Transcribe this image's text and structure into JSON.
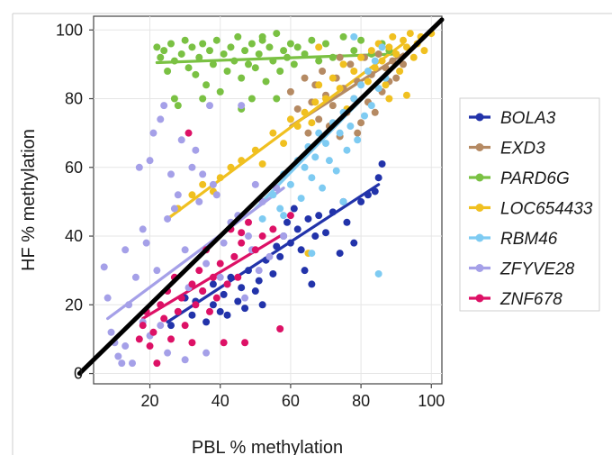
{
  "chart_data": {
    "type": "scatter",
    "title": "",
    "xlabel": "PBL % methylation",
    "ylabel": "HF % methylation",
    "xlim": [
      4,
      103
    ],
    "ylim": [
      -3,
      104
    ],
    "xticks": [
      20,
      40,
      60,
      80,
      100
    ],
    "yticks": [
      0,
      20,
      40,
      60,
      80,
      100
    ],
    "grid": true,
    "legend_position": "right",
    "identity_line": {
      "from": [
        0,
        0
      ],
      "to": [
        103,
        103
      ],
      "color": "#000000"
    },
    "series": [
      {
        "name": "BOLA3",
        "color": "#2233aa",
        "trend": [
          [
            25,
            15
          ],
          [
            85,
            55
          ]
        ],
        "points": [
          [
            26,
            14
          ],
          [
            28,
            18
          ],
          [
            30,
            22
          ],
          [
            32,
            17
          ],
          [
            33,
            21
          ],
          [
            35,
            24
          ],
          [
            36,
            15
          ],
          [
            38,
            20
          ],
          [
            38,
            26
          ],
          [
            40,
            18
          ],
          [
            41,
            23
          ],
          [
            42,
            17
          ],
          [
            43,
            28
          ],
          [
            45,
            21
          ],
          [
            46,
            25
          ],
          [
            47,
            19
          ],
          [
            48,
            30
          ],
          [
            50,
            24
          ],
          [
            51,
            27
          ],
          [
            52,
            20
          ],
          [
            53,
            33
          ],
          [
            55,
            29
          ],
          [
            56,
            37
          ],
          [
            57,
            34
          ],
          [
            58,
            40
          ],
          [
            59,
            44
          ],
          [
            60,
            38
          ],
          [
            61,
            48
          ],
          [
            62,
            42
          ],
          [
            63,
            36
          ],
          [
            64,
            30
          ],
          [
            65,
            45
          ],
          [
            66,
            26
          ],
          [
            67,
            40
          ],
          [
            68,
            46
          ],
          [
            70,
            41
          ],
          [
            72,
            47
          ],
          [
            74,
            35
          ],
          [
            75,
            50
          ],
          [
            76,
            44
          ],
          [
            78,
            38
          ],
          [
            80,
            50
          ],
          [
            82,
            52
          ],
          [
            84,
            53
          ],
          [
            85,
            57
          ],
          [
            86,
            61
          ]
        ]
      },
      {
        "name": "EXD3",
        "color": "#b58a63",
        "trend": [
          [
            60,
            72
          ],
          [
            92,
            93
          ]
        ],
        "points": [
          [
            60,
            82
          ],
          [
            62,
            77
          ],
          [
            64,
            86
          ],
          [
            65,
            70
          ],
          [
            66,
            79
          ],
          [
            67,
            84
          ],
          [
            68,
            74
          ],
          [
            69,
            88
          ],
          [
            70,
            81
          ],
          [
            71,
            72
          ],
          [
            72,
            78
          ],
          [
            73,
            86
          ],
          [
            74,
            69
          ],
          [
            75,
            83
          ],
          [
            76,
            76
          ],
          [
            77,
            90
          ],
          [
            78,
            80
          ],
          [
            79,
            85
          ],
          [
            80,
            73
          ],
          [
            81,
            92
          ],
          [
            82,
            79
          ],
          [
            83,
            87
          ],
          [
            84,
            76
          ],
          [
            85,
            93
          ],
          [
            86,
            82
          ],
          [
            87,
            89
          ],
          [
            88,
            85
          ],
          [
            89,
            91
          ],
          [
            90,
            86
          ],
          [
            92,
            90
          ],
          [
            74,
            92
          ],
          [
            79,
            70
          ]
        ]
      },
      {
        "name": "PARD6G",
        "color": "#7ac143",
        "trend": [
          [
            22,
            90.5
          ],
          [
            90,
            93
          ]
        ],
        "points": [
          [
            22,
            95
          ],
          [
            23,
            92
          ],
          [
            24,
            94
          ],
          [
            25,
            88
          ],
          [
            26,
            96
          ],
          [
            27,
            91
          ],
          [
            28,
            78
          ],
          [
            29,
            93
          ],
          [
            30,
            97
          ],
          [
            31,
            89
          ],
          [
            32,
            95
          ],
          [
            33,
            87
          ],
          [
            34,
            92
          ],
          [
            35,
            96
          ],
          [
            36,
            84
          ],
          [
            37,
            94
          ],
          [
            38,
            90
          ],
          [
            39,
            97
          ],
          [
            40,
            82
          ],
          [
            41,
            93
          ],
          [
            42,
            88
          ],
          [
            43,
            95
          ],
          [
            44,
            91
          ],
          [
            45,
            98
          ],
          [
            46,
            86
          ],
          [
            47,
            94
          ],
          [
            48,
            90
          ],
          [
            49,
            96
          ],
          [
            50,
            89
          ],
          [
            51,
            93
          ],
          [
            52,
            97
          ],
          [
            53,
            85
          ],
          [
            54,
            95
          ],
          [
            55,
            91
          ],
          [
            56,
            99
          ],
          [
            57,
            88
          ],
          [
            58,
            94
          ],
          [
            59,
            92
          ],
          [
            60,
            96
          ],
          [
            61,
            90
          ],
          [
            62,
            95
          ],
          [
            64,
            93
          ],
          [
            66,
            97
          ],
          [
            68,
            91
          ],
          [
            70,
            96
          ],
          [
            72,
            92
          ],
          [
            75,
            98
          ],
          [
            78,
            94
          ],
          [
            80,
            97
          ],
          [
            83,
            93
          ],
          [
            86,
            96
          ],
          [
            88,
            94
          ],
          [
            27,
            80
          ],
          [
            35,
            80
          ],
          [
            46,
            77
          ],
          [
            49,
            80
          ],
          [
            56,
            80
          ],
          [
            52,
            98
          ]
        ]
      },
      {
        "name": "LOC654433",
        "color": "#f0c020",
        "trend": [
          [
            25,
            45
          ],
          [
            92,
            96
          ]
        ],
        "points": [
          [
            28,
            48
          ],
          [
            32,
            52
          ],
          [
            35,
            55
          ],
          [
            38,
            53
          ],
          [
            40,
            57
          ],
          [
            43,
            60
          ],
          [
            46,
            62
          ],
          [
            50,
            65
          ],
          [
            52,
            61
          ],
          [
            55,
            70
          ],
          [
            58,
            67
          ],
          [
            60,
            74
          ],
          [
            62,
            72
          ],
          [
            64,
            76
          ],
          [
            66,
            73
          ],
          [
            67,
            79
          ],
          [
            68,
            84
          ],
          [
            70,
            80
          ],
          [
            72,
            86
          ],
          [
            74,
            83
          ],
          [
            75,
            90
          ],
          [
            76,
            77
          ],
          [
            78,
            88
          ],
          [
            80,
            92
          ],
          [
            82,
            85
          ],
          [
            83,
            94
          ],
          [
            84,
            89
          ],
          [
            85,
            96
          ],
          [
            86,
            91
          ],
          [
            87,
            84
          ],
          [
            88,
            95
          ],
          [
            89,
            98
          ],
          [
            90,
            93
          ],
          [
            91,
            88
          ],
          [
            92,
            97
          ],
          [
            93,
            95
          ],
          [
            94,
            99
          ],
          [
            95,
            92
          ],
          [
            96,
            96
          ],
          [
            97,
            98
          ],
          [
            98,
            94
          ],
          [
            100,
            99
          ],
          [
            93,
            81
          ],
          [
            88,
            80
          ],
          [
            65,
            35
          ],
          [
            68,
            95
          ]
        ]
      },
      {
        "name": "RBM46",
        "color": "#7ecbf2",
        "trend": [
          [
            50,
            48
          ],
          [
            88,
            88
          ]
        ],
        "points": [
          [
            52,
            45
          ],
          [
            55,
            52
          ],
          [
            57,
            48
          ],
          [
            58,
            58
          ],
          [
            60,
            55
          ],
          [
            62,
            62
          ],
          [
            63,
            51
          ],
          [
            64,
            60
          ],
          [
            65,
            66
          ],
          [
            66,
            57
          ],
          [
            67,
            63
          ],
          [
            68,
            70
          ],
          [
            69,
            54
          ],
          [
            70,
            67
          ],
          [
            71,
            62
          ],
          [
            72,
            73
          ],
          [
            73,
            59
          ],
          [
            74,
            70
          ],
          [
            75,
            76
          ],
          [
            76,
            65
          ],
          [
            77,
            72
          ],
          [
            78,
            80
          ],
          [
            79,
            68
          ],
          [
            80,
            84
          ],
          [
            81,
            75
          ],
          [
            82,
            88
          ],
          [
            83,
            78
          ],
          [
            84,
            91
          ],
          [
            85,
            83
          ],
          [
            86,
            95
          ],
          [
            87,
            86
          ],
          [
            78,
            98
          ],
          [
            85,
            29
          ],
          [
            66,
            35
          ],
          [
            58,
            46
          ],
          [
            75,
            50
          ]
        ]
      },
      {
        "name": "ZFYVE28",
        "color": "#a5a0e8",
        "trend": [
          [
            8,
            16
          ],
          [
            58,
            54
          ]
        ],
        "points": [
          [
            7,
            31
          ],
          [
            8,
            22
          ],
          [
            9,
            12
          ],
          [
            10,
            9
          ],
          [
            11,
            5
          ],
          [
            12,
            3
          ],
          [
            13,
            36
          ],
          [
            14,
            20
          ],
          [
            15,
            3
          ],
          [
            16,
            28
          ],
          [
            17,
            60
          ],
          [
            18,
            42
          ],
          [
            19,
            38
          ],
          [
            20,
            62
          ],
          [
            21,
            70
          ],
          [
            22,
            30
          ],
          [
            23,
            74
          ],
          [
            24,
            78
          ],
          [
            25,
            45
          ],
          [
            26,
            58
          ],
          [
            27,
            48
          ],
          [
            28,
            52
          ],
          [
            29,
            68
          ],
          [
            30,
            36
          ],
          [
            31,
            25
          ],
          [
            32,
            60
          ],
          [
            33,
            65
          ],
          [
            34,
            50
          ],
          [
            35,
            58
          ],
          [
            36,
            32
          ],
          [
            37,
            78
          ],
          [
            38,
            55
          ],
          [
            39,
            52
          ],
          [
            40,
            28
          ],
          [
            41,
            38
          ],
          [
            42,
            26
          ],
          [
            43,
            44
          ],
          [
            44,
            34
          ],
          [
            45,
            46
          ],
          [
            46,
            78
          ],
          [
            47,
            22
          ],
          [
            48,
            40
          ],
          [
            49,
            36
          ],
          [
            50,
            55
          ],
          [
            51,
            30
          ],
          [
            52,
            50
          ],
          [
            54,
            34
          ],
          [
            56,
            54
          ],
          [
            58,
            40
          ],
          [
            36,
            6
          ],
          [
            30,
            4
          ],
          [
            20,
            11
          ],
          [
            23,
            14
          ],
          [
            13,
            8
          ],
          [
            18,
            15
          ],
          [
            25,
            6
          ]
        ]
      },
      {
        "name": "ZNF678",
        "color": "#dd1166",
        "trend": [
          [
            18,
            16
          ],
          [
            57,
            40
          ]
        ],
        "points": [
          [
            17,
            10
          ],
          [
            18,
            14
          ],
          [
            19,
            18
          ],
          [
            20,
            8
          ],
          [
            21,
            12
          ],
          [
            22,
            3
          ],
          [
            23,
            20
          ],
          [
            24,
            16
          ],
          [
            25,
            24
          ],
          [
            26,
            10
          ],
          [
            27,
            28
          ],
          [
            28,
            18
          ],
          [
            29,
            22
          ],
          [
            30,
            14
          ],
          [
            31,
            70
          ],
          [
            32,
            26
          ],
          [
            33,
            20
          ],
          [
            34,
            30
          ],
          [
            35,
            24
          ],
          [
            36,
            36
          ],
          [
            37,
            18
          ],
          [
            38,
            28
          ],
          [
            39,
            22
          ],
          [
            40,
            32
          ],
          [
            41,
            9
          ],
          [
            42,
            26
          ],
          [
            43,
            42
          ],
          [
            44,
            34
          ],
          [
            45,
            28
          ],
          [
            46,
            38
          ],
          [
            47,
            9
          ],
          [
            48,
            44
          ],
          [
            50,
            36
          ],
          [
            52,
            40
          ],
          [
            55,
            42
          ],
          [
            57,
            13
          ],
          [
            60,
            46
          ],
          [
            32,
            9
          ],
          [
            46,
            41
          ]
        ]
      }
    ]
  }
}
